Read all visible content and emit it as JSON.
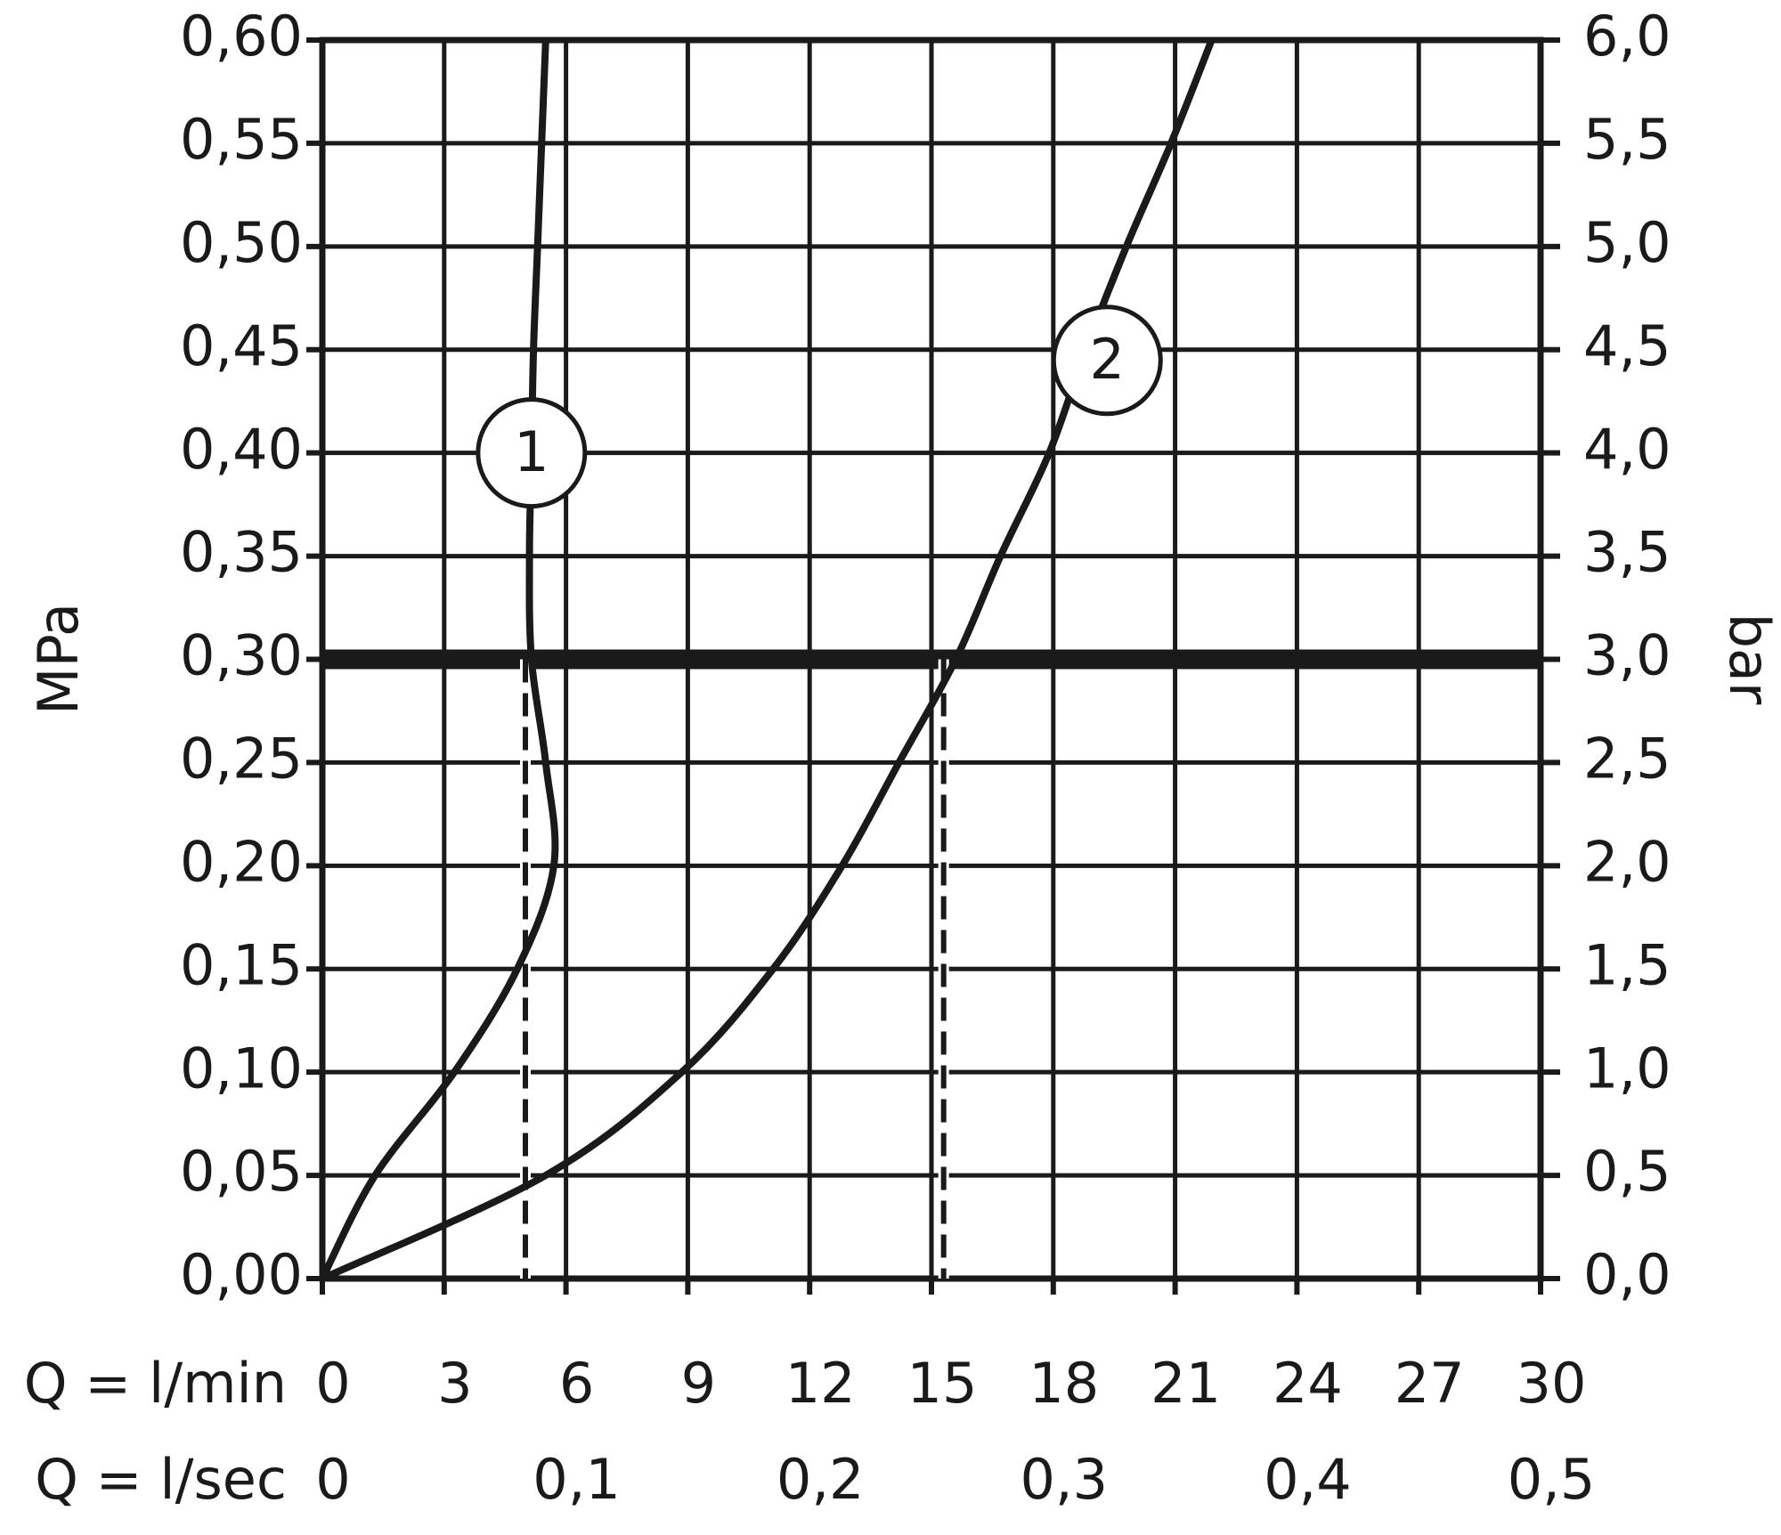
{
  "chart_data": {
    "type": "line",
    "y_label": "MPa",
    "y2_label": "bar",
    "x_label": "Q = l/min",
    "x2_label": "Q = l/sec",
    "series": [
      {
        "name": "1",
        "color": "#1a1a1a",
        "x": [
          0,
          1.3,
          3.25,
          4.8,
          5.7,
          5.5,
          5.15,
          5.1,
          5.15,
          5.2,
          5.3,
          5.4,
          5.5
        ],
        "values": [
          0,
          0.05,
          0.1,
          0.15,
          0.2,
          0.25,
          0.3,
          0.35,
          0.4,
          0.45,
          0.5,
          0.55,
          0.6
        ]
      },
      {
        "name": "2",
        "color": "#1a1a1a",
        "x": [
          0,
          5.5,
          8.85,
          11.1,
          12.8,
          14.2,
          15.6,
          16.7,
          17.9,
          18.8,
          19.8,
          20.9,
          21.9
        ],
        "values": [
          0,
          0.05,
          0.1,
          0.15,
          0.2,
          0.25,
          0.3,
          0.35,
          0.4,
          0.45,
          0.5,
          0.55,
          0.6
        ]
      }
    ],
    "xlim": [
      0,
      30
    ],
    "xticks": [
      0,
      3,
      6,
      9,
      12,
      15,
      18,
      21,
      24,
      27,
      30
    ],
    "x2lim": [
      0,
      0.5
    ],
    "x2ticks": [
      0,
      {
        "value": 0.1,
        "label": "0,1"
      },
      {
        "value": 0.2,
        "label": "0,2"
      },
      {
        "value": 0.3,
        "label": "0,3"
      },
      {
        "value": 0.4,
        "label": "0,4"
      },
      {
        "value": 0.5,
        "label": "0,5"
      }
    ],
    "ylim": [
      0,
      0.6
    ],
    "yticks": [
      {
        "value": 0,
        "label": "0,00"
      },
      {
        "value": 0.05,
        "label": "0,05"
      },
      {
        "value": 0.1,
        "label": "0,10"
      },
      {
        "value": 0.15,
        "label": "0,15"
      },
      {
        "value": 0.2,
        "label": "0,20"
      },
      {
        "value": 0.25,
        "label": "0,25"
      },
      {
        "value": 0.3,
        "label": "0,30"
      },
      {
        "value": 0.35,
        "label": "0,35"
      },
      {
        "value": 0.4,
        "label": "0,40"
      },
      {
        "value": 0.45,
        "label": "0,45"
      },
      {
        "value": 0.5,
        "label": "0,50"
      },
      {
        "value": 0.55,
        "label": "0,55"
      },
      {
        "value": 0.6,
        "label": "0,60"
      }
    ],
    "y2lim": [
      0,
      6
    ],
    "y2ticks": [
      {
        "value": 0,
        "label": "0,0"
      },
      {
        "value": 0.5,
        "label": "0,5"
      },
      {
        "value": 1,
        "label": "1,0"
      },
      {
        "value": 1.5,
        "label": "1,5"
      },
      {
        "value": 2,
        "label": "2,0"
      },
      {
        "value": 2.5,
        "label": "2,5"
      },
      {
        "value": 3,
        "label": "3,0"
      },
      {
        "value": 3.5,
        "label": "3,5"
      },
      {
        "value": 4,
        "label": "4,0"
      },
      {
        "value": 4.5,
        "label": "4,5"
      },
      {
        "value": 5,
        "label": "5,0"
      },
      {
        "value": 5.5,
        "label": "5,5"
      },
      {
        "value": 6,
        "label": "6,0"
      }
    ],
    "hlines": [
      0.3
    ],
    "vlines": [
      5,
      15.3
    ],
    "grid": true
  }
}
